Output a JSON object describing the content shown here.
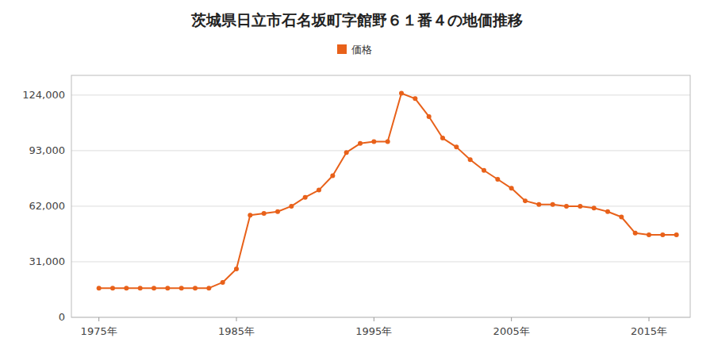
{
  "chart_data": {
    "type": "line",
    "title": "茨城県日立市石名坂町字館野６１番４の地価推移",
    "x": [
      1975,
      1976,
      1977,
      1978,
      1979,
      1980,
      1981,
      1982,
      1983,
      1984,
      1985,
      1986,
      1987,
      1988,
      1989,
      1990,
      1991,
      1992,
      1993,
      1994,
      1995,
      1996,
      1997,
      1998,
      1999,
      2000,
      2001,
      2002,
      2003,
      2004,
      2005,
      2006,
      2007,
      2008,
      2009,
      2010,
      2011,
      2012,
      2013,
      2014,
      2015,
      2016,
      2017
    ],
    "series": [
      {
        "name": "価格",
        "color": "#e8611a",
        "marker": "circle",
        "line_style": "solid",
        "values": [
          16300,
          16300,
          16300,
          16300,
          16300,
          16300,
          16300,
          16300,
          16300,
          19500,
          27000,
          57000,
          58000,
          59000,
          62000,
          67000,
          71000,
          79000,
          92000,
          97000,
          98000,
          98000,
          125000,
          122000,
          112000,
          100000,
          95000,
          88000,
          82000,
          77000,
          72000,
          65000,
          63000,
          63000,
          62000,
          62000,
          61000,
          59000,
          56000,
          47000,
          46000,
          46000,
          46000
        ]
      }
    ],
    "xlim": [
      1973,
      2018
    ],
    "xticks": [
      {
        "value": 1975,
        "label": "1975年"
      },
      {
        "value": 1985,
        "label": "1985年"
      },
      {
        "value": 1995,
        "label": "1995年"
      },
      {
        "value": 2005,
        "label": "2005年"
      },
      {
        "value": 2015,
        "label": "2015年"
      }
    ],
    "ylim": [
      0,
      135000
    ],
    "yticks": [
      0,
      {
        "value": 31000,
        "label": "31,000"
      },
      {
        "value": 62000,
        "label": "62,000"
      },
      {
        "value": 93000,
        "label": "93,000"
      },
      {
        "value": 124000,
        "label": "124,000"
      }
    ],
    "grid": true,
    "legend": "top"
  }
}
